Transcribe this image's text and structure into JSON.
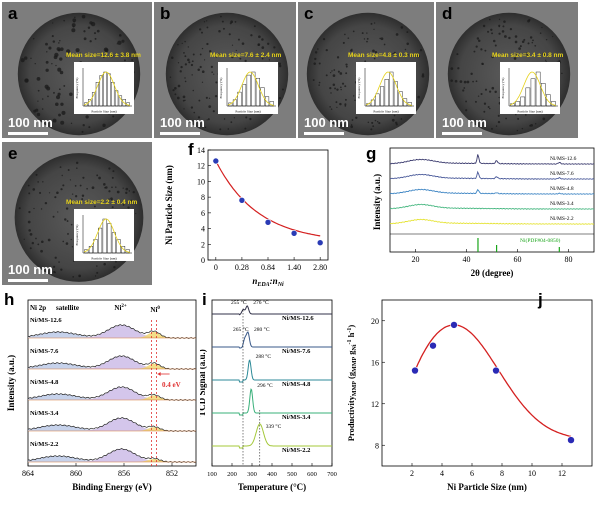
{
  "tem_panels": [
    {
      "label": "a",
      "scale": "100 nm",
      "mean": "Mean size=12.6 ± 3.8 nm",
      "xlabel": "Particle Size (nm)",
      "ylabel": "Frequency (%)",
      "hist": [
        2,
        4,
        8,
        14,
        18,
        20,
        19,
        14,
        9,
        6,
        4,
        2
      ]
    },
    {
      "label": "b",
      "scale": "100 nm",
      "mean": "Mean size=7.6 ± 2.4 nm",
      "xlabel": "Particle Size (nm)",
      "ylabel": "Frequency (%)",
      "hist": [
        2,
        4,
        9,
        14,
        20,
        22,
        18,
        12,
        6,
        3
      ]
    },
    {
      "label": "c",
      "scale": "100 nm",
      "mean": "Mean size=4.8 ± 0.3 nm",
      "xlabel": "Particle Size (nm)",
      "ylabel": "Frequency (%)",
      "hist": [
        2,
        5,
        10,
        16,
        22,
        28,
        20,
        12,
        6,
        3
      ]
    },
    {
      "label": "d",
      "scale": "100 nm",
      "mean": "Mean size=3.4 ± 0.8 nm",
      "xlabel": "Particle Size (nm)",
      "ylabel": "Frequency (%)",
      "hist": [
        2,
        4,
        8,
        16,
        24,
        30,
        20,
        10,
        4
      ]
    },
    {
      "label": "e",
      "scale": "100 nm",
      "mean": "Mean size=2.2 ± 0.4 nm",
      "xlabel": "Particle Size (nm)",
      "ylabel": "Frequency (%)",
      "hist": [
        3,
        6,
        12,
        22,
        30,
        26,
        18,
        12,
        6,
        3
      ]
    }
  ],
  "chart_data": [
    {
      "panel": "f",
      "type": "scatter",
      "xlabel": "nEDA:nNi",
      "ylabel": "Ni Particle Size (nm)",
      "x": [
        0,
        0.28,
        0.84,
        1.4,
        2.8
      ],
      "x_tick_labels": [
        "0",
        "0.28",
        "0.84",
        "1.40",
        "2.80"
      ],
      "y": [
        12.6,
        7.6,
        4.8,
        3.4,
        2.2
      ],
      "ylim": [
        0,
        14
      ],
      "y_ticks": [
        0,
        2,
        4,
        6,
        8,
        10,
        12,
        14
      ],
      "fit_line": "red"
    },
    {
      "panel": "g",
      "type": "line",
      "xlabel": "2θ (degree)",
      "ylabel": "Intensity (a.u.)",
      "xlim": [
        10,
        90
      ],
      "x_ticks": [
        20,
        40,
        60,
        80
      ],
      "series": [
        {
          "name": "Ni/MS-12.6",
          "color": "#3b3b6e"
        },
        {
          "name": "Ni/MS-7.6",
          "color": "#4a5a9a"
        },
        {
          "name": "Ni/MS-4.8",
          "color": "#3f86c4"
        },
        {
          "name": "Ni/MS-3.4",
          "color": "#49b882"
        },
        {
          "name": "Ni/MS-2.2",
          "color": "#e5e334"
        }
      ],
      "reference": {
        "name": "Ni(PDF#04-0850)",
        "color": "#1aa51a",
        "peaks": [
          44.5,
          51.8,
          76.4
        ]
      }
    },
    {
      "panel": "h",
      "type": "line",
      "xlabel": "Binding Energy (eV)",
      "ylabel": "Intensity (a.u.)",
      "xlim": [
        864,
        850
      ],
      "x_ticks": [
        864,
        860,
        856,
        852
      ],
      "title": "Ni 2p",
      "annotations": [
        "satellite",
        "Ni2+",
        "Ni0",
        "0.4 eV"
      ],
      "series": [
        {
          "name": "Ni/MS-12.6"
        },
        {
          "name": "Ni/MS-7.6"
        },
        {
          "name": "Ni/MS-4.8"
        },
        {
          "name": "Ni/MS-3.4"
        },
        {
          "name": "Ni/MS-2.2"
        }
      ]
    },
    {
      "panel": "i",
      "type": "line",
      "xlabel": "Temperature (°C)",
      "ylabel": "TCD Signal (a.u.)",
      "xlim": [
        100,
        700
      ],
      "x_ticks": [
        100,
        200,
        300,
        400,
        500,
        600,
        700
      ],
      "series": [
        {
          "name": "Ni/MS-12.6",
          "peaks": [
            "255 °C",
            "276 °C"
          ],
          "color": "#303048"
        },
        {
          "name": "Ni/MS-7.6",
          "peaks": [
            "265 °C",
            "280 °C"
          ],
          "color": "#3a5a8a"
        },
        {
          "name": "Ni/MS-4.8",
          "peaks": [
            "288 °C"
          ],
          "color": "#2d8a98"
        },
        {
          "name": "Ni/MS-3.4",
          "peaks": [
            "296 °C"
          ],
          "color": "#39b07a"
        },
        {
          "name": "Ni/MS-2.2",
          "peaks": [
            "339 °C"
          ],
          "color": "#a4c83a"
        }
      ]
    },
    {
      "panel": "j",
      "type": "scatter",
      "xlabel": "Ni Particle Size (nm)",
      "ylabel": "ProductivityMMP (gMMP gNi-1 h-1)",
      "x": [
        2.2,
        3.4,
        4.8,
        7.6,
        12.6
      ],
      "y": [
        15.2,
        17.6,
        19.6,
        15.2,
        8.5
      ],
      "xlim": [
        0,
        14
      ],
      "ylim": [
        6,
        22
      ],
      "x_ticks": [
        2,
        4,
        6,
        8,
        10,
        12
      ],
      "y_ticks": [
        8,
        12,
        16,
        20
      ],
      "fit_line": "red"
    }
  ],
  "labels": {
    "f": "f",
    "g": "g",
    "h": "h",
    "i": "i",
    "j": "j",
    "f_xlabel_main": "n",
    "f_xlabel_sub1": "EDA",
    "f_xlabel_colon": ":n",
    "f_xlabel_sub2": "Ni",
    "j_ylabel_main": "Productivity",
    "j_ylabel_sub": "MMP",
    "j_ylabel_mid": " (g",
    "j_ylabel_sub2": "MMP",
    " j_ylabel_g": " g",
    "j_ylabel_sub3": "Ni",
    "j_ylabel_sup": "-1",
    "j_ylabel_h": " h",
    "j_ylabel_sup2": "-1",
    "j_ylabel_end": ")",
    "h_ni2": "Ni",
    "h_ni2_sup": "2+",
    "h_ni0": "Ni",
    "h_ni0_sup": "0"
  }
}
